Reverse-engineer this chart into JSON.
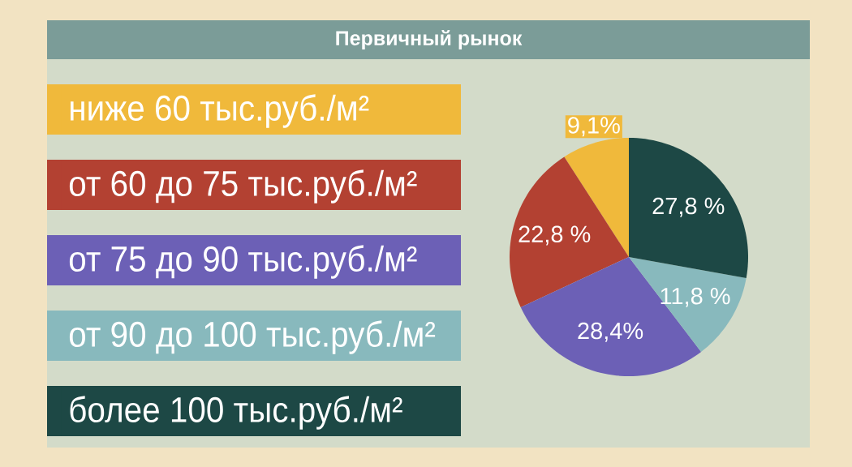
{
  "chart_data": {
    "type": "pie",
    "title": "Первичный рынок",
    "categories": [
      "ниже 60 тыс.руб./м²",
      "от 60 до 75 тыс.руб./м²",
      "от 75 до 90 тыс.руб./м²",
      "от 90 до 100 тыс.руб./м²",
      "более 100 тыс.руб./м²"
    ],
    "values": [
      9.1,
      22.8,
      28.4,
      11.8,
      27.8
    ],
    "colors": [
      "#f0b93b",
      "#b34132",
      "#6c60b6",
      "#88b9bd",
      "#1d4845"
    ],
    "value_labels": [
      "9,1%",
      "22,8 %",
      "28,4%",
      "11,8 %",
      "27,8 %"
    ],
    "legend": "left"
  }
}
